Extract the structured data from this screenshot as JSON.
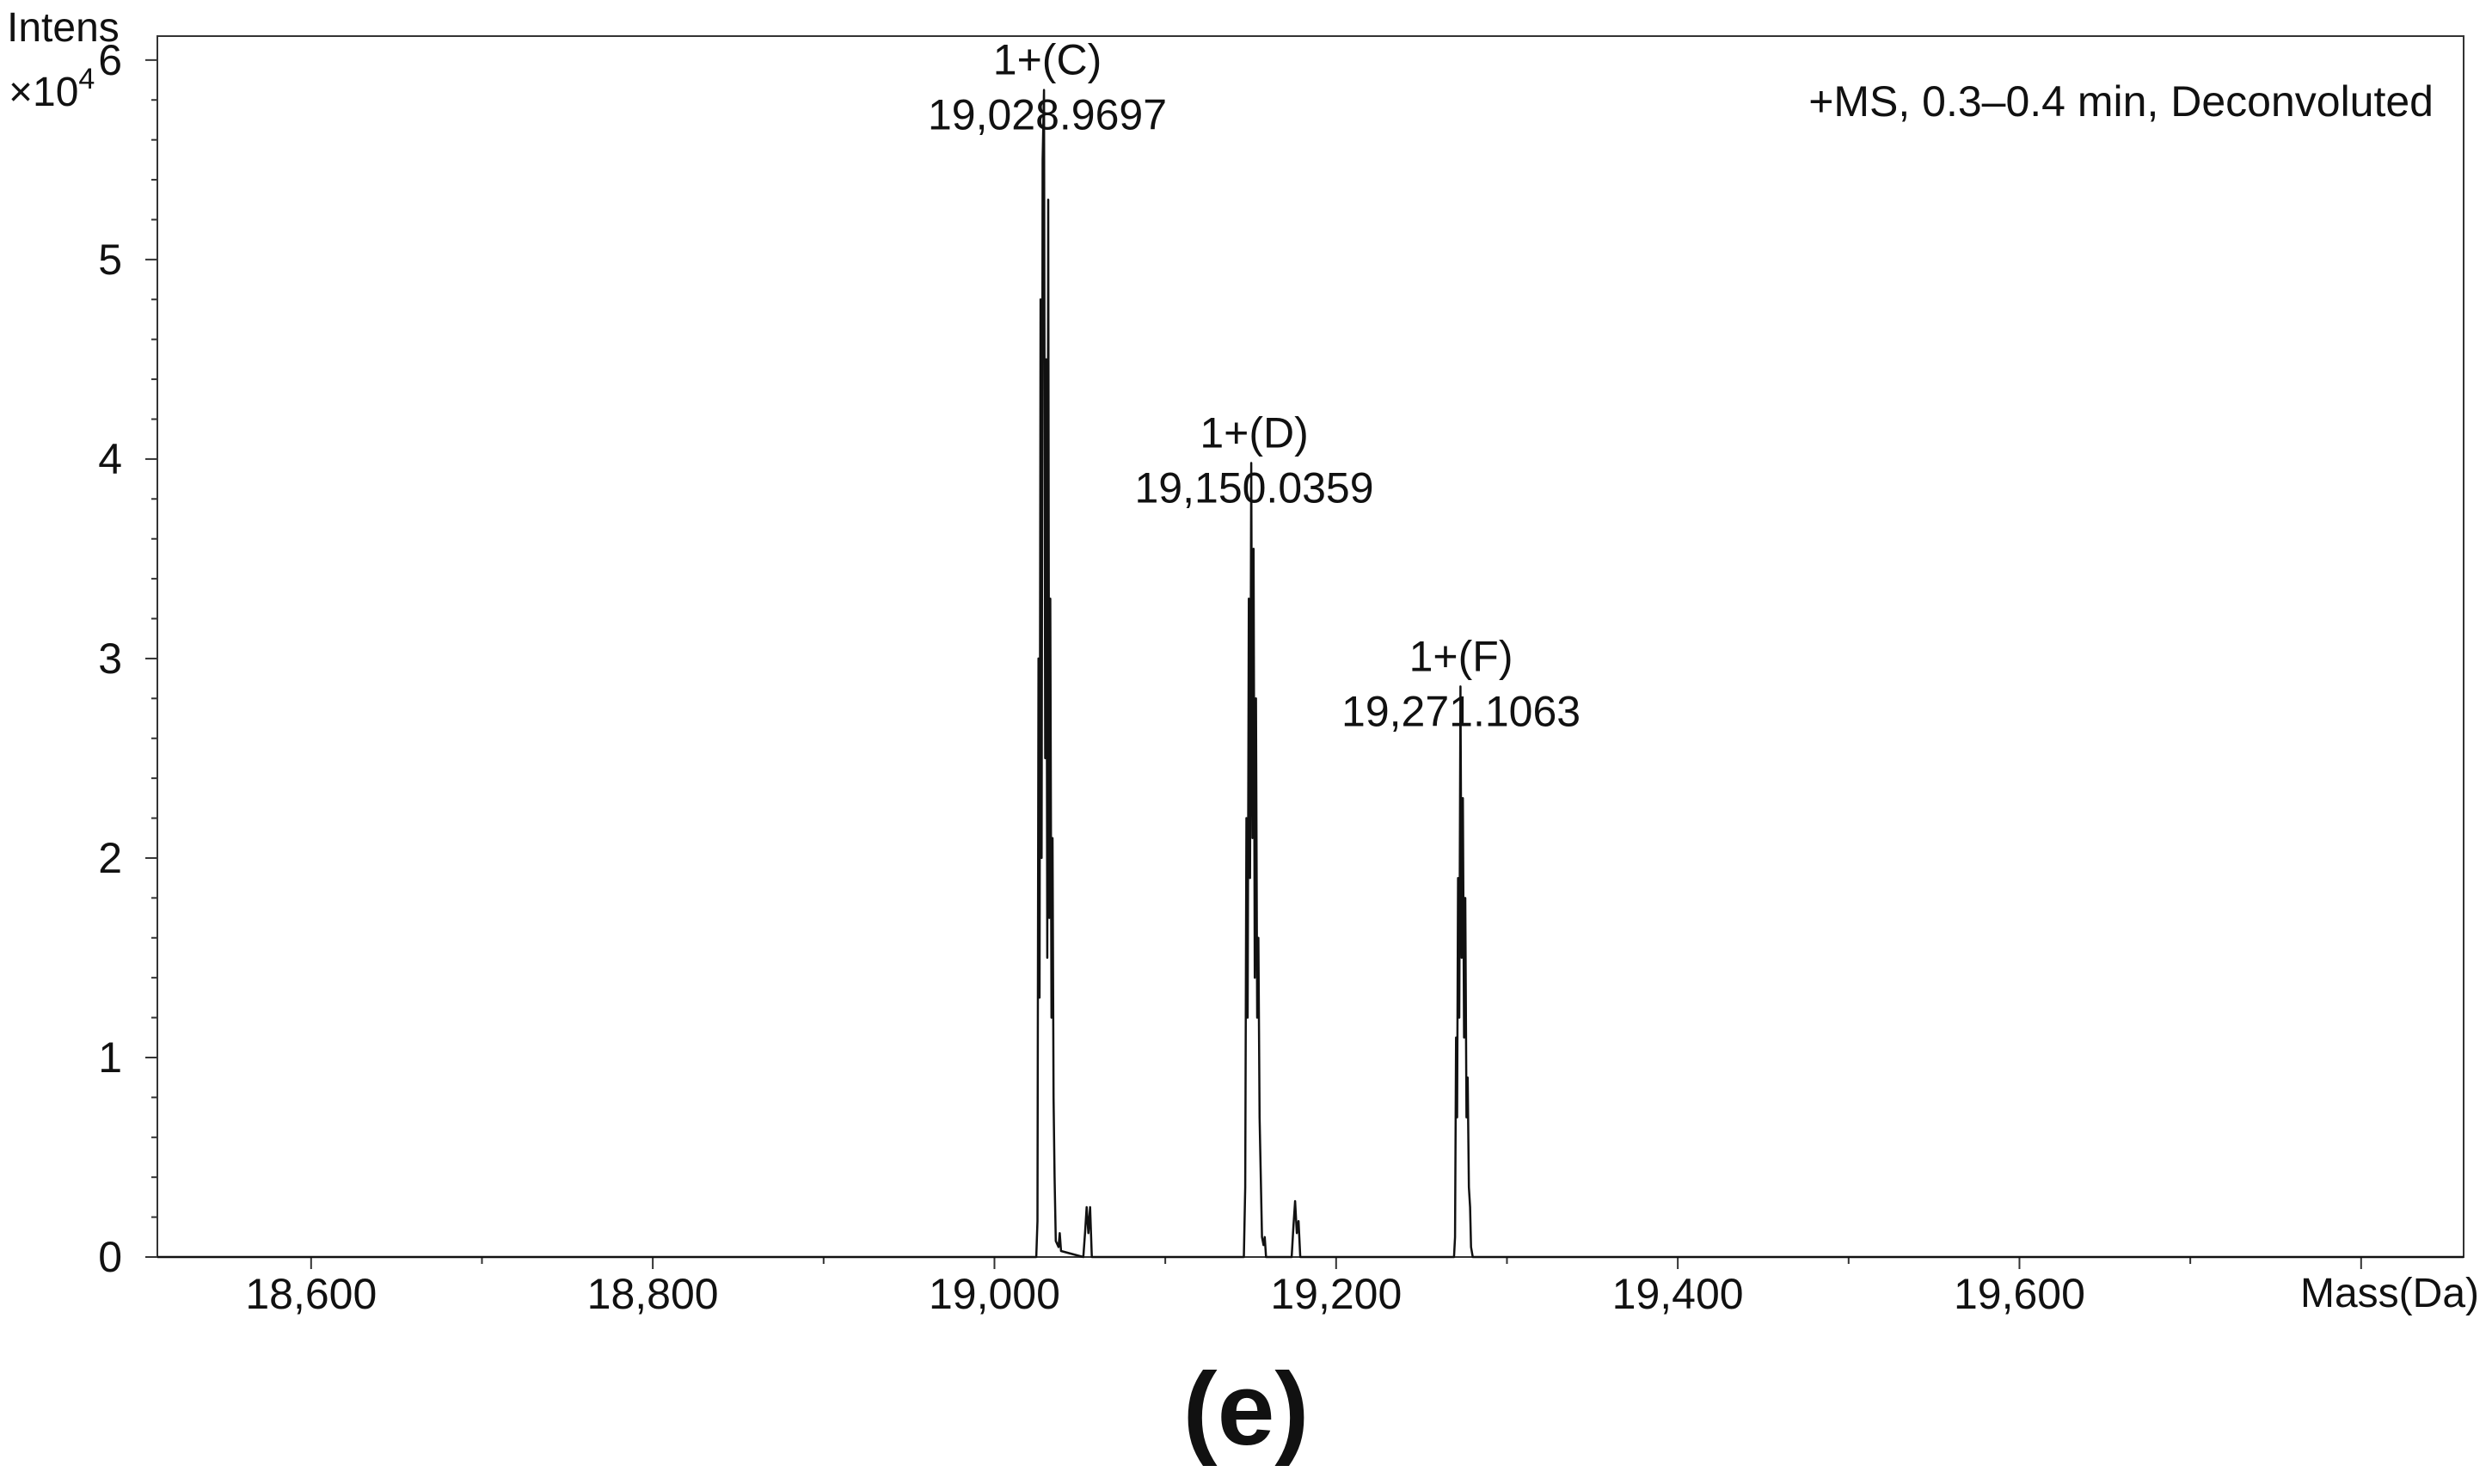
{
  "chart_data": {
    "type": "line",
    "figure_label": "(e)",
    "ylabel": "Intens",
    "y_multiplier_base": "×10",
    "y_multiplier_exp": "4",
    "xlabel": "Mass(Da)",
    "annotation": "+MS, 0.3–0.4 min, Deconvoluted",
    "xlim": [
      18510,
      19860
    ],
    "ylim": [
      0,
      6.12
    ],
    "x_ticks": [
      18600,
      18800,
      19000,
      19200,
      19400,
      19600
    ],
    "x_tick_labels": [
      "18,600",
      "18,800",
      "19,000",
      "19,200",
      "19,400",
      "19,600"
    ],
    "y_ticks": [
      0,
      1,
      2,
      3,
      4,
      5,
      6
    ],
    "y_tick_labels": [
      "0",
      "1",
      "2",
      "3",
      "4",
      "5",
      "6"
    ],
    "peaks": [
      {
        "charge_label": "1+(C)",
        "mass_label": "19,028.9697",
        "mass": 19028.9697,
        "intensity": 5.85
      },
      {
        "charge_label": "1+(D)",
        "mass_label": "19,150.0359",
        "mass": 19150.0359,
        "intensity": 3.98
      },
      {
        "charge_label": "1+(F)",
        "mass_label": "19,271.1063",
        "mass": 19271.1063,
        "intensity": 2.86
      }
    ],
    "series": [
      {
        "points": [
          [
            18510,
            0
          ],
          [
            19024.5,
            0
          ],
          [
            19025.2,
            0.18
          ],
          [
            19025.8,
            3.0
          ],
          [
            19026.4,
            1.3
          ],
          [
            19027.0,
            4.8
          ],
          [
            19027.6,
            2.0
          ],
          [
            19028.2,
            5.5
          ],
          [
            19029.0,
            5.85
          ],
          [
            19029.7,
            2.5
          ],
          [
            19030.3,
            4.5
          ],
          [
            19030.9,
            1.5
          ],
          [
            19031.5,
            5.3
          ],
          [
            19032.1,
            1.7
          ],
          [
            19032.7,
            3.3
          ],
          [
            19033.4,
            1.2
          ],
          [
            19034.0,
            2.1
          ],
          [
            19034.6,
            0.8
          ],
          [
            19035.2,
            0.4
          ],
          [
            19035.9,
            0.08
          ],
          [
            19037.5,
            0.05
          ],
          [
            19038.2,
            0.12
          ],
          [
            19039.0,
            0.03
          ],
          [
            19052,
            0
          ],
          [
            19053.0,
            0.12
          ],
          [
            19054.0,
            0.25
          ],
          [
            19055.0,
            0.12
          ],
          [
            19056.0,
            0.25
          ],
          [
            19057,
            0
          ],
          [
            19146.0,
            0
          ],
          [
            19146.8,
            0.35
          ],
          [
            19147.5,
            2.2
          ],
          [
            19148.2,
            1.2
          ],
          [
            19148.9,
            3.3
          ],
          [
            19149.6,
            1.9
          ],
          [
            19150.3,
            3.98
          ],
          [
            19151.0,
            2.1
          ],
          [
            19151.7,
            3.55
          ],
          [
            19152.4,
            1.4
          ],
          [
            19153.1,
            2.8
          ],
          [
            19153.8,
            1.2
          ],
          [
            19154.5,
            1.6
          ],
          [
            19155.2,
            0.7
          ],
          [
            19155.9,
            0.4
          ],
          [
            19156.6,
            0.1
          ],
          [
            19157.5,
            0.06
          ],
          [
            19158.2,
            0.1
          ],
          [
            19159,
            0
          ],
          [
            19174,
            0
          ],
          [
            19175.0,
            0.15
          ],
          [
            19176.0,
            0.28
          ],
          [
            19177.0,
            0.12
          ],
          [
            19178.0,
            0.18
          ],
          [
            19179,
            0
          ],
          [
            19269.0,
            0
          ],
          [
            19269.6,
            0.1
          ],
          [
            19270.2,
            1.1
          ],
          [
            19270.8,
            0.7
          ],
          [
            19271.4,
            1.9
          ],
          [
            19272.1,
            1.2
          ],
          [
            19272.8,
            2.86
          ],
          [
            19273.5,
            1.5
          ],
          [
            19274.2,
            2.3
          ],
          [
            19274.9,
            1.1
          ],
          [
            19275.6,
            1.8
          ],
          [
            19276.3,
            0.7
          ],
          [
            19277.0,
            0.9
          ],
          [
            19277.7,
            0.35
          ],
          [
            19278.4,
            0.25
          ],
          [
            19279.0,
            0.05
          ],
          [
            19280,
            0
          ],
          [
            19860,
            0
          ]
        ]
      }
    ]
  }
}
